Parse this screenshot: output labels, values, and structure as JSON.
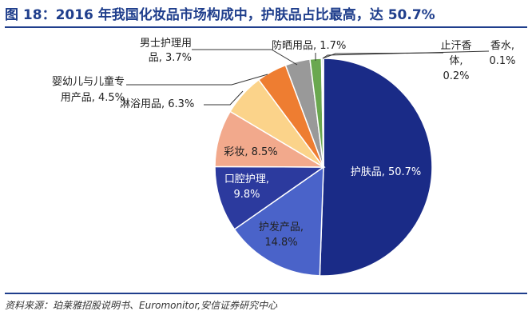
{
  "figure": {
    "title": "图 18：2016 年我国化妆品市场构成中，护肤品占比最高，达 50.7%",
    "source": "资料来源：珀莱雅招股说明书、Euromonitor,安信证券研究中心"
  },
  "chart_data": {
    "type": "pie",
    "title": "",
    "start_angle_deg": 0,
    "direction": "clockwise",
    "slices": [
      {
        "name": "护肤品",
        "value": 50.7,
        "value_label": "50.7%",
        "color": "#1a2b87",
        "label_lines": [
          "护肤品, 50.7%"
        ],
        "label_on_slice": true
      },
      {
        "name": "护发产品",
        "value": 14.8,
        "value_label": "14.8%",
        "color": "#4a63c9",
        "label_lines": [
          "护发产品,",
          "14.8%"
        ],
        "label_on_slice": false
      },
      {
        "name": "口腔护理",
        "value": 9.8,
        "value_label": "9.8%",
        "color": "#2c3a9e",
        "label_lines": [
          "口腔护理,",
          "9.8%"
        ],
        "label_on_slice": true
      },
      {
        "name": "彩妆",
        "value": 8.5,
        "value_label": "8.5%",
        "color": "#f2a98c",
        "label_lines": [
          "彩妆, 8.5%"
        ],
        "label_on_slice": false
      },
      {
        "name": "淋浴用品",
        "value": 6.3,
        "value_label": "6.3%",
        "color": "#fbd38a",
        "label_lines": [
          "淋浴用品, 6.3%"
        ],
        "label_on_slice": false
      },
      {
        "name": "婴幼儿与儿童专用产品",
        "value": 4.5,
        "value_label": "4.5%",
        "color": "#ee7d31",
        "label_lines": [
          "婴幼儿与儿童专",
          "用产品, 4.5%"
        ],
        "label_on_slice": false
      },
      {
        "name": "男士护理用品",
        "value": 3.7,
        "value_label": "3.7%",
        "color": "#999999",
        "label_lines": [
          "男士护理用",
          "品, 3.7%"
        ],
        "label_on_slice": false
      },
      {
        "name": "防晒用品",
        "value": 1.7,
        "value_label": "1.7%",
        "color": "#6aa84f",
        "label_lines": [
          "防晒用品, 1.7%"
        ],
        "label_on_slice": false
      },
      {
        "name": "止汗香体",
        "value": 0.2,
        "value_label": "0.2%",
        "color": "#2e6d8e",
        "label_lines": [
          "止汗香",
          "体,",
          "0.2%"
        ],
        "label_on_slice": false
      },
      {
        "name": "香水",
        "value": 0.1,
        "value_label": "0.1%",
        "color": "#8fb8d8",
        "label_lines": [
          "香水,",
          "0.1%"
        ],
        "label_on_slice": false
      }
    ]
  }
}
